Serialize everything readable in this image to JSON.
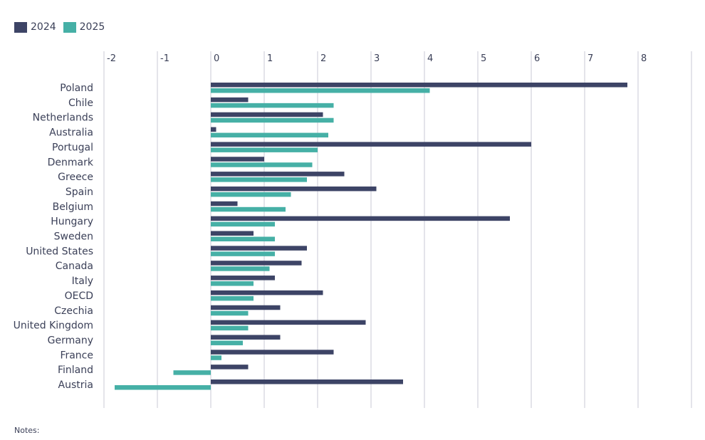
{
  "legend": [
    {
      "name": "2024",
      "color": "#3d4466"
    },
    {
      "name": "2025",
      "color": "#46b0a6"
    }
  ],
  "notes_label": "Notes:",
  "chart_data": {
    "type": "bar",
    "orientation": "horizontal",
    "categories": [
      "Poland",
      "Chile",
      "Netherlands",
      "Australia",
      "Portugal",
      "Denmark",
      "Greece",
      "Spain",
      "Belgium",
      "Hungary",
      "Sweden",
      "United States",
      "Canada",
      "Italy",
      "OECD",
      "Czechia",
      "United Kingdom",
      "Germany",
      "France",
      "Finland",
      "Austria"
    ],
    "series": [
      {
        "name": "2024",
        "color": "#3d4466",
        "values": [
          7.8,
          0.7,
          2.1,
          0.1,
          6.0,
          1.0,
          2.5,
          3.1,
          0.5,
          5.6,
          0.8,
          1.8,
          1.7,
          1.2,
          2.1,
          1.3,
          2.9,
          1.3,
          2.3,
          0.7,
          3.6
        ]
      },
      {
        "name": "2025",
        "color": "#46b0a6",
        "values": [
          4.1,
          2.3,
          2.3,
          2.2,
          2.0,
          1.9,
          1.8,
          1.5,
          1.4,
          1.2,
          1.2,
          1.2,
          1.1,
          0.8,
          0.8,
          0.7,
          0.7,
          0.6,
          0.2,
          -0.7,
          -1.8
        ]
      }
    ],
    "xticks": [
      "-2",
      "-1",
      "0",
      "1",
      "2",
      "3",
      "4",
      "5",
      "6",
      "7",
      "8"
    ],
    "xlim": [
      -2,
      9
    ],
    "grid": true,
    "legend_position": "top-left"
  }
}
